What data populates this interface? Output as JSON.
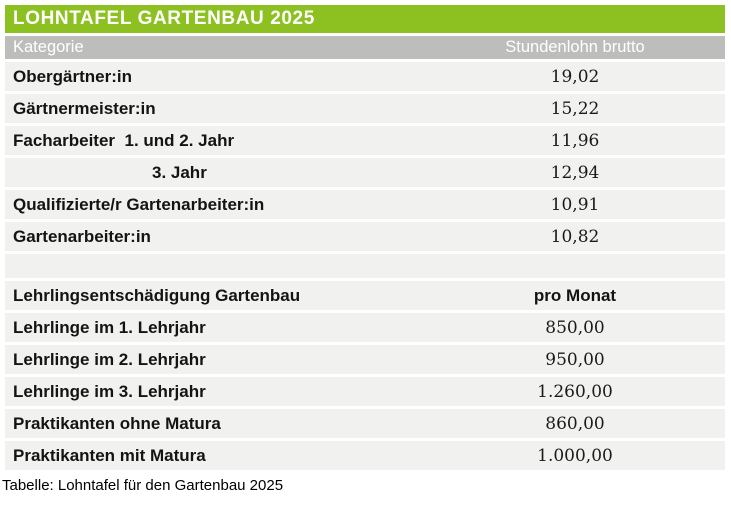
{
  "table": {
    "title": "LOHNTAFEL GARTENBAU 2025",
    "columns": [
      "Kategorie",
      "Stundenlohn brutto"
    ],
    "rows": [
      {
        "label": "Obergärtner:in",
        "value": "19,02",
        "style": "normal"
      },
      {
        "label": "Gärtnermeister:in",
        "value": "15,22",
        "style": "normal"
      },
      {
        "label": "Facharbeiter  1. und 2. Jahr",
        "value": "11,96",
        "style": "normal"
      },
      {
        "label": "3. Jahr",
        "value": "12,94",
        "style": "indent"
      },
      {
        "label": "Qualifizierte/r Gartenarbeiter:in",
        "value": "10,91",
        "style": "normal"
      },
      {
        "label": "Gartenarbeiter:in",
        "value": "10,82",
        "style": "normal"
      },
      {
        "label": "",
        "value": "",
        "style": "spacer"
      },
      {
        "label": "Lehrlingsentschädigung Gartenbau",
        "value": "pro Monat",
        "style": "section-header"
      },
      {
        "label": "Lehrlinge im 1. Lehrjahr",
        "value": "850,00",
        "style": "normal"
      },
      {
        "label": "Lehrlinge im 2. Lehrjahr",
        "value": "950,00",
        "style": "normal"
      },
      {
        "label": "Lehrlinge im 3. Lehrjahr",
        "value": "1.260,00",
        "style": "normal"
      },
      {
        "label": "Praktikanten ohne Matura",
        "value": "860,00",
        "style": "normal"
      },
      {
        "label": "Praktikanten mit Matura",
        "value": "1.000,00",
        "style": "normal"
      }
    ]
  },
  "caption": "Tabelle: Lohntafel für den Gartenbau 2025",
  "colors": {
    "accent_green": "#8dc021",
    "header_gray": "#bdbdbb",
    "row_background": "#f1f1ef",
    "text_black": "#141414",
    "header_text_white": "#ffffff"
  }
}
